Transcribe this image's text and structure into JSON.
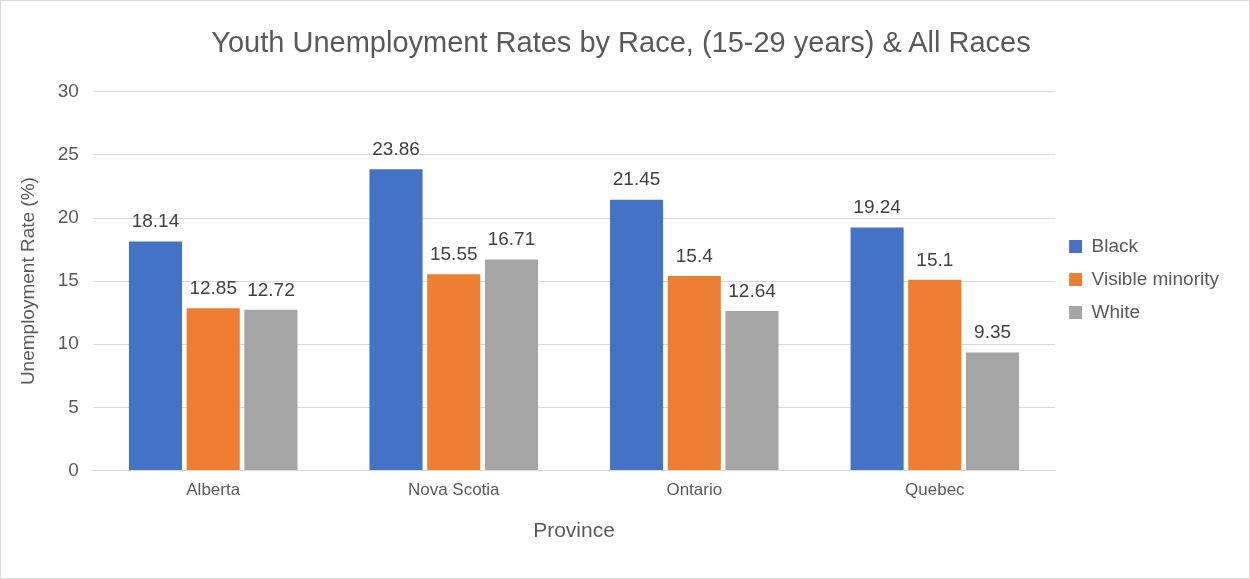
{
  "chart_data": {
    "type": "bar",
    "title": "Youth Unemployment Rates by Race, (15-29 years) & All Races",
    "xlabel": "Province",
    "ylabel": "Unemployment Rate (%)",
    "categories": [
      "Alberta",
      "Nova Scotia",
      "Ontario",
      "Quebec"
    ],
    "series": [
      {
        "name": "Black",
        "color": "#4472c4",
        "values": [
          18.14,
          23.86,
          21.45,
          19.24
        ]
      },
      {
        "name": "Visible minority",
        "color": "#ed7d31",
        "values": [
          12.85,
          15.55,
          15.4,
          15.1
        ]
      },
      {
        "name": "White",
        "color": "#a5a5a5",
        "values": [
          12.72,
          16.71,
          12.64,
          9.35
        ]
      }
    ],
    "ylim": [
      0,
      30
    ],
    "yticks": [
      0,
      5,
      10,
      15,
      20,
      25,
      30
    ],
    "grid": "y",
    "legend": "right",
    "data_labels": true
  }
}
